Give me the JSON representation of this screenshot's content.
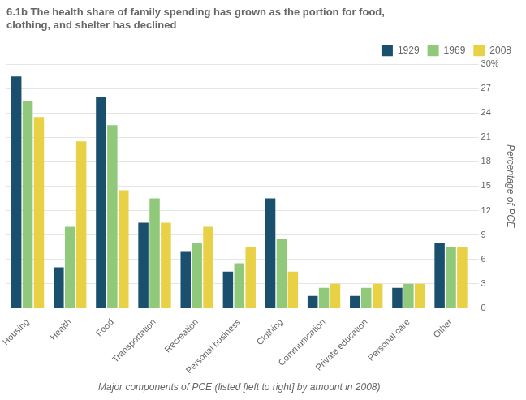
{
  "chart_data": {
    "type": "bar",
    "title": "6.1b The health share of family spending has grown as the portion for food,\nclothing, and shelter has declined",
    "ylabel": "Percentage of PCE",
    "xlabel": "Major components of PCE (listed [left to right] by amount in 2008)",
    "categories": [
      "Housing",
      "Health",
      "Food",
      "Transportation",
      "Recreation",
      "Personal business",
      "Clothing",
      "Communication",
      "Private education",
      "Personal care",
      "Other"
    ],
    "series": [
      {
        "name": "1929",
        "color": "#1b4f6e",
        "values": [
          28.5,
          5.0,
          26.0,
          10.5,
          7.0,
          4.5,
          13.5,
          1.5,
          1.5,
          2.5,
          8.0
        ]
      },
      {
        "name": "1969",
        "color": "#90c97a",
        "values": [
          25.5,
          10.0,
          22.5,
          13.5,
          8.0,
          5.5,
          8.5,
          2.5,
          2.5,
          3.0,
          7.5
        ]
      },
      {
        "name": "2008",
        "color": "#e8d145",
        "values": [
          23.5,
          20.5,
          14.5,
          10.5,
          10.0,
          7.5,
          4.5,
          3.0,
          3.0,
          3.0,
          7.5
        ]
      }
    ],
    "ylim": [
      0,
      30
    ],
    "yticks": [
      0,
      3,
      6,
      9,
      12,
      15,
      18,
      21,
      24,
      27,
      {
        "value": 30,
        "label": "30%"
      }
    ],
    "grid": true,
    "legend": "upper right"
  }
}
